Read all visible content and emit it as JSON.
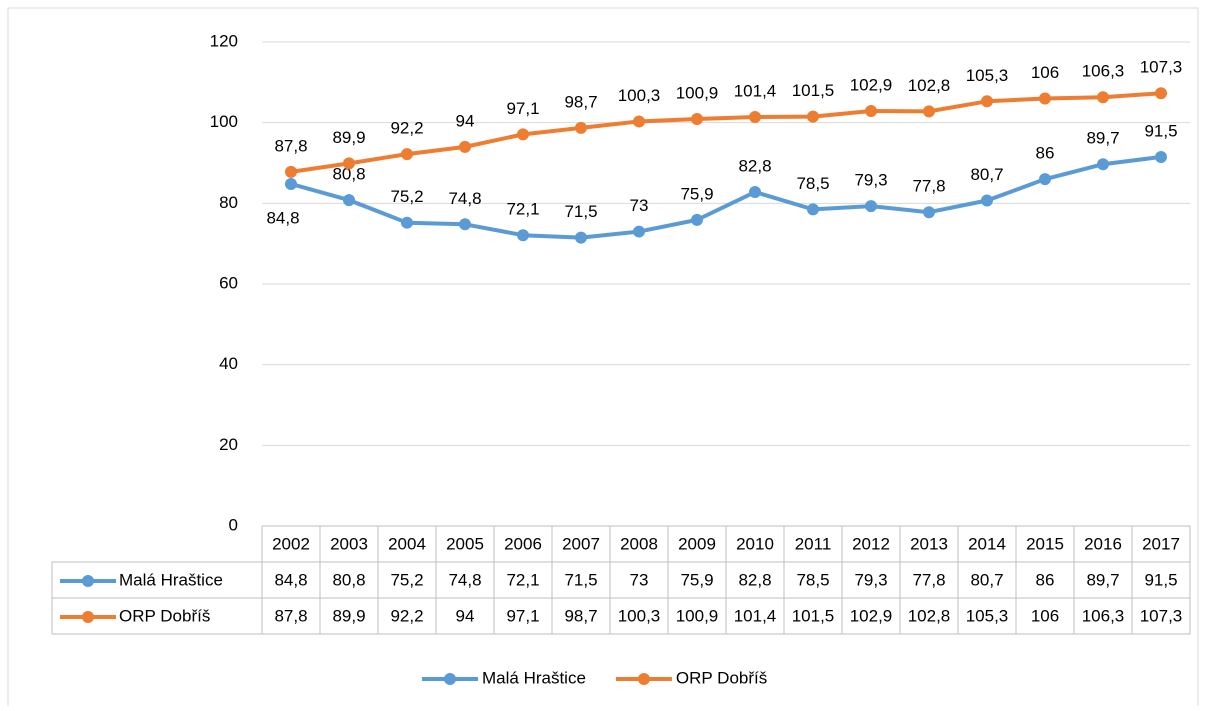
{
  "chart_data": {
    "type": "line",
    "categories": [
      "2002",
      "2003",
      "2004",
      "2005",
      "2006",
      "2007",
      "2008",
      "2009",
      "2010",
      "2011",
      "2012",
      "2013",
      "2014",
      "2015",
      "2016",
      "2017"
    ],
    "series": [
      {
        "name": "Malá Hraštice",
        "color": "#5b9bd5",
        "values": [
          84.8,
          80.8,
          75.2,
          74.8,
          72.1,
          71.5,
          73,
          75.9,
          82.8,
          78.5,
          79.3,
          77.8,
          80.7,
          86,
          89.7,
          91.5
        ],
        "value_labels": [
          "84,8",
          "80,8",
          "75,2",
          "74,8",
          "72,1",
          "71,5",
          "73",
          "75,9",
          "82,8",
          "78,5",
          "79,3",
          "77,8",
          "80,7",
          "86",
          "89,7",
          "91,5"
        ]
      },
      {
        "name": "ORP Dobříš",
        "color": "#ed7d31",
        "values": [
          87.8,
          89.9,
          92.2,
          94,
          97.1,
          98.7,
          100.3,
          100.9,
          101.4,
          101.5,
          102.9,
          102.8,
          105.3,
          106,
          106.3,
          107.3
        ],
        "value_labels": [
          "87,8",
          "89,9",
          "92,2",
          "94",
          "97,1",
          "98,7",
          "100,3",
          "100,9",
          "101,4",
          "101,5",
          "102,9",
          "102,8",
          "105,3",
          "106",
          "106,3",
          "107,3"
        ]
      }
    ],
    "ylim": [
      0,
      120
    ],
    "yticks": [
      0,
      20,
      40,
      60,
      80,
      100,
      120
    ],
    "grid": true,
    "legend": "bottom",
    "data_table": true
  }
}
